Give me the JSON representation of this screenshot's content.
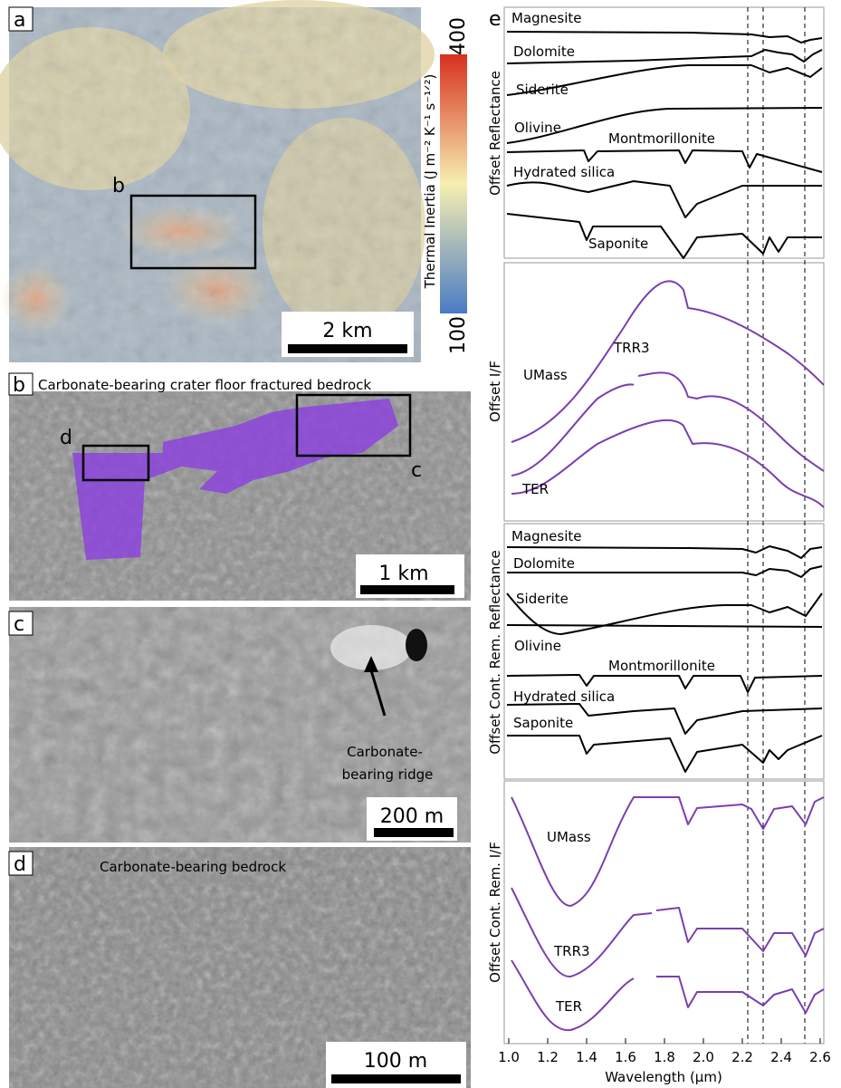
{
  "panel_a": {
    "label": "a",
    "box_label": "b",
    "scale_bar": "2 km",
    "colorbar": {
      "title": "Thermal Inertia (J m⁻² K⁻¹ s⁻¹ᐟ²)",
      "max": 400,
      "min": 100
    }
  },
  "panel_b": {
    "label": "b",
    "title": "Carbonate-bearing crater floor fractured bedrock",
    "box_labels": [
      "d",
      "c"
    ],
    "scale_bar": "1 km"
  },
  "panel_c": {
    "label": "c",
    "annotation": [
      "Carbonate-",
      "bearing ridge"
    ],
    "scale_bar": "200 m"
  },
  "panel_d": {
    "label": "d",
    "title": "Carbonate-bearing bedrock",
    "scale_bar": "100 m"
  },
  "panel_e": {
    "label": "e",
    "x_label": "Wavelength (µm)",
    "xticks": [
      {
        "value": 1.0,
        "label": "1.0"
      },
      {
        "value": 1.2,
        "label": "1.2"
      },
      {
        "value": 1.4,
        "label": "1.4"
      },
      {
        "value": 1.6,
        "label": "1.6"
      },
      {
        "value": 1.8,
        "label": "1.8"
      },
      {
        "value": 2.0,
        "label": "2.0"
      },
      {
        "value": 2.2,
        "label": "2.2"
      },
      {
        "value": 2.4,
        "label": "2.4"
      },
      {
        "value": 2.6,
        "label": "2.6"
      }
    ],
    "xlim": [
      1.0,
      2.6
    ],
    "boxes": [
      {
        "y_label": "Offset Reflectance",
        "curves": [
          "Magnesite",
          "Dolomite",
          "Siderite",
          "Olivine",
          "Montmorillonite",
          "Hydrated silica",
          "Saponite"
        ]
      },
      {
        "y_label": "Offset I/F",
        "curves": [
          "UMass",
          "TRR3",
          "TER"
        ]
      },
      {
        "y_label": "Offset Cont. Rem. Reflectance",
        "curves": [
          "Magnesite",
          "Dolomite",
          "Siderite",
          "Olivine",
          "Montmorillonite",
          "Hydrated silica",
          "Saponite"
        ]
      },
      {
        "y_label": "Offset Cont. Rem. I/F",
        "curves": [
          "UMass",
          "TRR3",
          "TER"
        ]
      }
    ]
  }
}
